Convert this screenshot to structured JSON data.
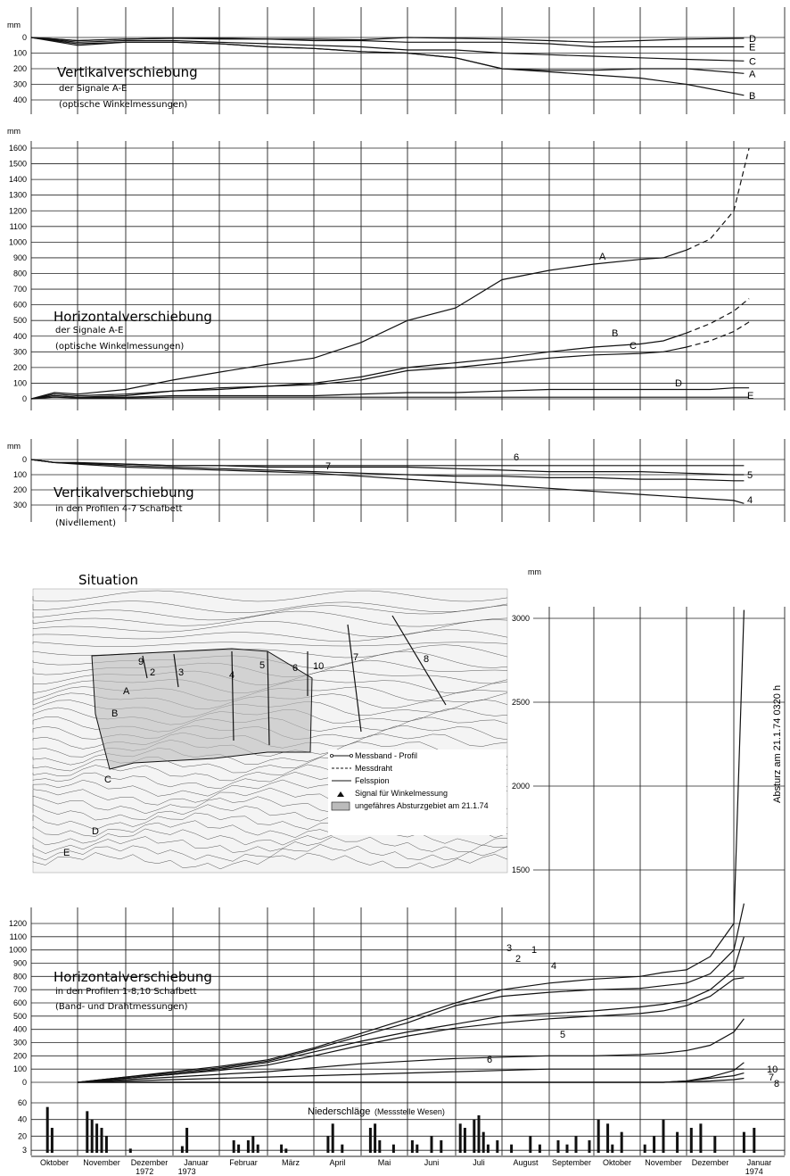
{
  "months": [
    "Oktober",
    "November",
    "Dezember",
    "Januar",
    "Februar",
    "März",
    "April",
    "Mai",
    "Juni",
    "Juli",
    "August",
    "September",
    "Oktober",
    "November",
    "Dezember",
    "Januar"
  ],
  "years": [
    "1972",
    "1973",
    "1974"
  ],
  "panels": {
    "vert_AE": {
      "unit": "mm",
      "title": "Vertikalverschiebung",
      "subtitle1": "der Signale A-E",
      "subtitle2": "(optische Winkelmessungen)"
    },
    "horiz_AE": {
      "unit": "mm",
      "title": "Horizontalverschiebung",
      "subtitle1": "der Signale A-E",
      "subtitle2": "(optische Winkelmessungen)"
    },
    "vert_47": {
      "unit": "mm",
      "title": "Vertikalverschiebung",
      "subtitle1": "in den Profilen 4-7 Schafbett",
      "subtitle2": "(Nivellement)"
    },
    "situation": {
      "title": "Situation",
      "unit": "mm",
      "event": "Absturz am 21.1.74  0320 h"
    },
    "horiz_18": {
      "title": "Horizontalverschiebung",
      "subtitle1": "in den Profilen 1-8,10 Schafbett",
      "subtitle2": "(Band- und Drahtmessungen)"
    },
    "precip": {
      "title": "Niederschläge",
      "source": "(Messstelle Wesen)"
    }
  },
  "legend": [
    {
      "symbol": "line-circle",
      "label": "Messband - Profil"
    },
    {
      "symbol": "dashed",
      "label": "Messdraht"
    },
    {
      "symbol": "solid",
      "label": "Felsspion"
    },
    {
      "symbol": "triangle",
      "label": "Signal für Winkelmessung"
    },
    {
      "symbol": "hatched",
      "label": "ungefähres Absturzgebiet am 21.1.74"
    }
  ],
  "map_labels": [
    "9",
    "2",
    "3",
    "4",
    "5",
    "6",
    "10",
    "7",
    "8",
    "A",
    "B",
    "C",
    "D",
    "E"
  ],
  "chart_data": [
    {
      "type": "line",
      "title": "Vertikalverschiebung der Signale A-E (optische Winkelmessungen)",
      "ylabel": "mm",
      "yticks": [
        0,
        100,
        200,
        300,
        400
      ],
      "ylim": [
        0,
        450
      ],
      "y_inverted": true,
      "x": [
        0,
        1,
        2,
        3,
        4,
        5,
        6,
        7,
        8,
        9,
        10,
        11,
        12,
        13,
        14,
        15.2
      ],
      "series": [
        {
          "name": "A",
          "values": [
            0,
            40,
            30,
            30,
            40,
            60,
            70,
            90,
            100,
            130,
            200,
            210,
            210,
            200,
            200,
            230
          ]
        },
        {
          "name": "B",
          "values": [
            0,
            50,
            30,
            30,
            40,
            60,
            70,
            90,
            100,
            130,
            200,
            220,
            240,
            260,
            300,
            370
          ]
        },
        {
          "name": "C",
          "values": [
            0,
            30,
            20,
            20,
            30,
            40,
            50,
            60,
            80,
            80,
            100,
            110,
            120,
            130,
            140,
            150
          ]
        },
        {
          "name": "D",
          "values": [
            0,
            20,
            10,
            5,
            5,
            10,
            10,
            15,
            0,
            5,
            10,
            20,
            30,
            20,
            10,
            5
          ]
        },
        {
          "name": "E",
          "values": [
            0,
            20,
            10,
            5,
            10,
            10,
            20,
            20,
            30,
            30,
            30,
            40,
            60,
            60,
            60,
            60
          ]
        }
      ]
    },
    {
      "type": "line",
      "title": "Horizontalverschiebung der Signale A-E (optische Winkelmessungen)",
      "ylabel": "mm",
      "yticks": [
        0,
        100,
        200,
        300,
        400,
        500,
        600,
        700,
        800,
        900,
        1000,
        1100,
        1200,
        1300,
        1400,
        1500,
        1600
      ],
      "ylim": [
        -20,
        1700
      ],
      "x": [
        0,
        0.5,
        1,
        2,
        3,
        4,
        5,
        6,
        7,
        8,
        9,
        10,
        11,
        12,
        13,
        13.5,
        14,
        14.5,
        15,
        15.3
      ],
      "series": [
        {
          "name": "A",
          "values": [
            0,
            40,
            30,
            60,
            120,
            170,
            220,
            260,
            360,
            500,
            580,
            760,
            820,
            860,
            890,
            900,
            950,
            1020,
            1200,
            1600
          ],
          "dashed_from_x": 14
        },
        {
          "name": "B",
          "values": [
            0,
            30,
            20,
            30,
            50,
            60,
            80,
            100,
            140,
            200,
            230,
            260,
            300,
            330,
            350,
            370,
            420,
            480,
            560,
            640
          ],
          "dashed_from_x": 14
        },
        {
          "name": "C",
          "values": [
            0,
            20,
            10,
            20,
            50,
            70,
            80,
            90,
            120,
            180,
            200,
            230,
            260,
            280,
            290,
            300,
            330,
            370,
            430,
            490
          ],
          "dashed_from_x": 14
        },
        {
          "name": "D",
          "values": [
            0,
            20,
            10,
            10,
            20,
            20,
            20,
            20,
            30,
            40,
            40,
            50,
            60,
            60,
            60,
            60,
            60,
            60,
            70,
            70
          ]
        },
        {
          "name": "E",
          "values": [
            0,
            10,
            5,
            5,
            10,
            10,
            10,
            10,
            10,
            10,
            10,
            10,
            10,
            10,
            10,
            10,
            10,
            10,
            10,
            10
          ]
        }
      ]
    },
    {
      "type": "line",
      "title": "Vertikalverschiebung in den Profilen 4-7 Schafbett (Nivellement)",
      "ylabel": "mm",
      "yticks": [
        0,
        100,
        200,
        300
      ],
      "ylim": [
        0,
        350
      ],
      "y_inverted": true,
      "x": [
        0,
        0.5,
        1,
        2,
        3,
        4,
        5,
        6,
        7,
        8,
        9,
        10,
        11,
        12,
        13,
        14,
        15,
        15.2
      ],
      "series": [
        {
          "name": "4",
          "values": [
            0,
            20,
            30,
            50,
            60,
            70,
            80,
            90,
            110,
            130,
            150,
            170,
            190,
            210,
            230,
            250,
            270,
            290
          ]
        },
        {
          "name": "5",
          "values": [
            0,
            20,
            25,
            40,
            50,
            60,
            70,
            80,
            90,
            100,
            110,
            110,
            120,
            120,
            130,
            130,
            140,
            140
          ]
        },
        {
          "name": "6",
          "values": [
            0,
            20,
            25,
            30,
            40,
            40,
            50,
            50,
            50,
            50,
            60,
            70,
            80,
            80,
            80,
            90,
            100,
            100
          ]
        },
        {
          "name": "7",
          "values": [
            0,
            20,
            20,
            30,
            40,
            40,
            40,
            40,
            40,
            40,
            40,
            40,
            40,
            40,
            40,
            40,
            40,
            40
          ]
        }
      ]
    },
    {
      "type": "line",
      "title": "Horizontalverschiebung in den Profilen 1-8,10 Schafbett (Band- und Drahtmessungen)",
      "ylabel": "mm",
      "yticks": [
        0,
        100,
        200,
        300,
        400,
        500,
        600,
        700,
        800,
        900,
        1000,
        1100,
        1200,
        1500,
        2000,
        2500,
        3000
      ],
      "ylim": [
        0,
        3100
      ],
      "x": [
        1,
        2,
        3,
        4,
        5,
        6,
        7,
        8,
        9,
        10,
        11,
        12,
        13,
        13.5,
        14,
        14.5,
        15,
        15.2
      ],
      "series": [
        {
          "name": "1",
          "values": [
            0,
            30,
            60,
            100,
            150,
            230,
            310,
            380,
            440,
            500,
            520,
            540,
            570,
            590,
            620,
            700,
            850,
            1100
          ]
        },
        {
          "name": "2",
          "values": [
            0,
            40,
            70,
            110,
            160,
            250,
            350,
            450,
            580,
            650,
            680,
            700,
            710,
            730,
            750,
            820,
            1000,
            1300
          ]
        },
        {
          "name": "3",
          "values": [
            0,
            40,
            80,
            120,
            170,
            260,
            370,
            480,
            600,
            700,
            750,
            780,
            800,
            830,
            850,
            950,
            1200,
            3050
          ]
        },
        {
          "name": "4",
          "values": [
            0,
            30,
            60,
            90,
            130,
            200,
            280,
            350,
            410,
            450,
            480,
            500,
            520,
            540,
            580,
            650,
            780,
            790
          ]
        },
        {
          "name": "5",
          "values": [
            0,
            20,
            40,
            60,
            80,
            110,
            140,
            160,
            180,
            190,
            200,
            200,
            210,
            220,
            240,
            280,
            380,
            480
          ]
        },
        {
          "name": "6",
          "values": [
            0,
            10,
            20,
            30,
            40,
            50,
            60,
            70,
            80,
            90,
            100,
            100,
            100,
            100,
            100,
            100,
            100,
            100
          ]
        },
        {
          "name": "10",
          "values": [
            0,
            0,
            0,
            0,
            0,
            0,
            0,
            0,
            0,
            0,
            0,
            0,
            0,
            0,
            10,
            40,
            90,
            150
          ]
        },
        {
          "name": "7",
          "values": [
            0,
            0,
            0,
            0,
            0,
            0,
            0,
            0,
            0,
            0,
            0,
            0,
            0,
            0,
            10,
            30,
            50,
            70
          ]
        },
        {
          "name": "8",
          "values": [
            0,
            0,
            0,
            0,
            0,
            0,
            0,
            0,
            0,
            0,
            0,
            0,
            0,
            0,
            5,
            10,
            20,
            30
          ]
        }
      ]
    },
    {
      "type": "bar",
      "title": "Niederschläge (Messstelle Wesen)",
      "yticks": [
        3,
        20,
        40,
        60
      ],
      "ylim": [
        0,
        70
      ],
      "x": [
        0.35,
        0.45,
        1.2,
        1.3,
        1.4,
        1.5,
        1.6,
        2.1,
        3.2,
        3.3,
        4.3,
        4.4,
        4.6,
        4.7,
        4.8,
        5.3,
        5.4,
        6.3,
        6.4,
        6.6,
        7.2,
        7.3,
        7.4,
        7.7,
        8.1,
        8.2,
        8.5,
        8.7,
        9.1,
        9.2,
        9.4,
        9.5,
        9.6,
        9.7,
        9.9,
        10.2,
        10.6,
        10.8,
        11.2,
        11.4,
        11.6,
        11.9,
        12.1,
        12.3,
        12.4,
        12.6,
        13.1,
        13.3,
        13.5,
        13.8,
        14.1,
        14.3,
        14.6,
        15.2,
        15.4
      ],
      "values": [
        55,
        30,
        50,
        40,
        35,
        30,
        20,
        5,
        8,
        30,
        15,
        10,
        15,
        20,
        10,
        10,
        5,
        20,
        35,
        10,
        30,
        35,
        15,
        10,
        15,
        10,
        20,
        15,
        35,
        30,
        40,
        45,
        25,
        10,
        15,
        10,
        20,
        10,
        15,
        10,
        20,
        15,
        40,
        35,
        10,
        25,
        10,
        20,
        40,
        25,
        30,
        35,
        20,
        25,
        30
      ]
    }
  ]
}
